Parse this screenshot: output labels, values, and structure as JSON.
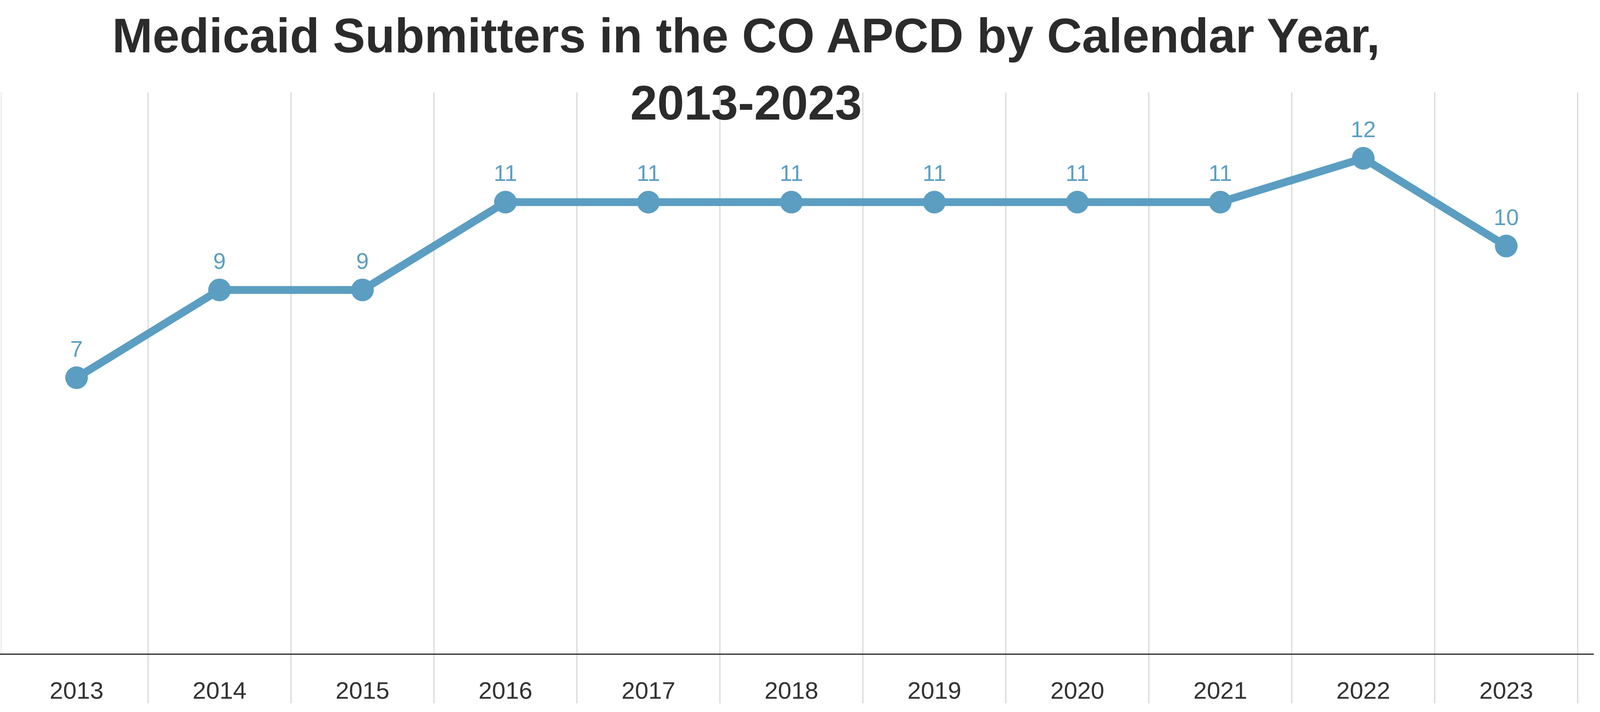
{
  "chart_data": {
    "type": "line",
    "title": "Medicaid Submitters in the CO APCD by Calendar Year, 2013-2023",
    "categories": [
      "2013",
      "2014",
      "2015",
      "2016",
      "2017",
      "2018",
      "2019",
      "2020",
      "2021",
      "2022",
      "2023"
    ],
    "values": [
      7,
      9,
      9,
      11,
      11,
      11,
      11,
      11,
      11,
      12,
      10
    ],
    "color": "#5b9ec1",
    "marker": "circle",
    "line_style": "solid",
    "ylim": [
      0.7,
      13.5
    ],
    "grid": true,
    "data_labels": true,
    "tick_labels": "x"
  }
}
